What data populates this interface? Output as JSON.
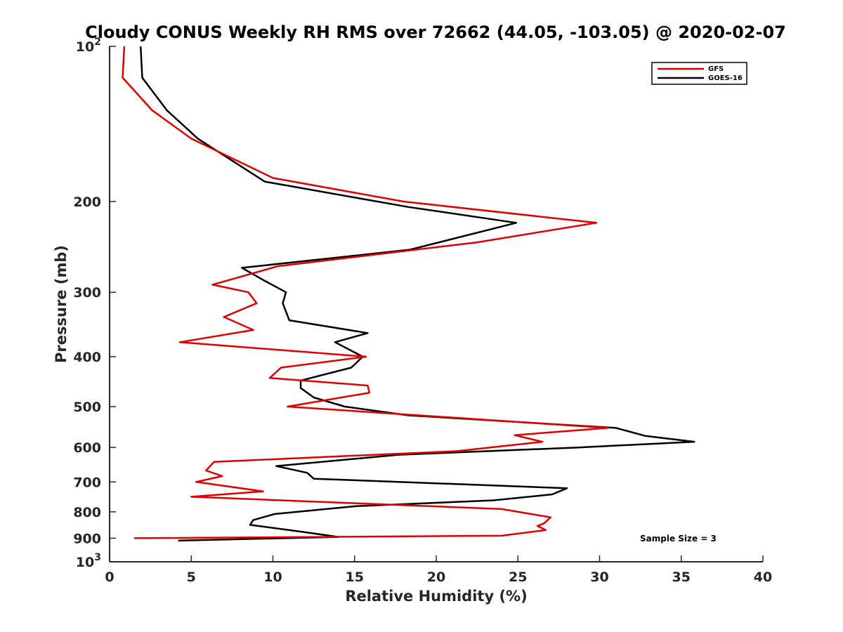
{
  "chart_data": {
    "type": "line",
    "title": "Cloudy CONUS Weekly RH RMS over 72662 (44.05, -103.05) @ 2020-02-07",
    "xlabel": "Relative Humidity (%)",
    "ylabel": "Pressure (mb)",
    "xlim": [
      0,
      40
    ],
    "ylim": [
      1000,
      100
    ],
    "y_scale": "log",
    "y_reversed": true,
    "x_ticks": [
      "0",
      "5",
      "10",
      "15",
      "20",
      "25",
      "30",
      "35",
      "40"
    ],
    "y_ticks": [
      {
        "value": 100,
        "base": "10",
        "exp": "2"
      },
      {
        "value": 200,
        "label": "200"
      },
      {
        "value": 300,
        "label": "300"
      },
      {
        "value": 400,
        "label": "400"
      },
      {
        "value": 500,
        "label": "500"
      },
      {
        "value": 600,
        "label": "600"
      },
      {
        "value": 700,
        "label": "700"
      },
      {
        "value": 800,
        "label": "800"
      },
      {
        "value": 900,
        "label": "900"
      },
      {
        "value": 1000,
        "base": "10",
        "exp": "3"
      }
    ],
    "legend_position": "top-right",
    "annotation": "Sample Size = 3",
    "series": [
      {
        "name": "GFS",
        "color": "#e00000",
        "points": [
          [
            0.9,
            100
          ],
          [
            0.8,
            115
          ],
          [
            2.6,
            133
          ],
          [
            5.0,
            151
          ],
          [
            10.0,
            180
          ],
          [
            18.0,
            200
          ],
          [
            29.8,
            220
          ],
          [
            22.5,
            240
          ],
          [
            10.3,
            267
          ],
          [
            6.3,
            290
          ],
          [
            8.5,
            300
          ],
          [
            9.0,
            315
          ],
          [
            7.0,
            335
          ],
          [
            8.8,
            355
          ],
          [
            4.3,
            375
          ],
          [
            15.7,
            400
          ],
          [
            10.5,
            420
          ],
          [
            9.8,
            440
          ],
          [
            15.8,
            455
          ],
          [
            15.9,
            470
          ],
          [
            10.9,
            500
          ],
          [
            30.5,
            550
          ],
          [
            24.8,
            568
          ],
          [
            26.5,
            585
          ],
          [
            21.3,
            610
          ],
          [
            6.4,
            640
          ],
          [
            5.9,
            665
          ],
          [
            6.9,
            682
          ],
          [
            5.3,
            700
          ],
          [
            9.4,
            730
          ],
          [
            5.0,
            748
          ],
          [
            24.0,
            790
          ],
          [
            27.0,
            820
          ],
          [
            26.6,
            842
          ],
          [
            26.2,
            852
          ],
          [
            26.7,
            868
          ],
          [
            24.0,
            890
          ],
          [
            1.5,
            900
          ]
        ]
      },
      {
        "name": "GOES-16",
        "color": "#000000",
        "points": [
          [
            1.9,
            100
          ],
          [
            2.0,
            115
          ],
          [
            3.5,
            133
          ],
          [
            5.4,
            151
          ],
          [
            9.5,
            183
          ],
          [
            18.3,
            205
          ],
          [
            24.9,
            220
          ],
          [
            18.4,
            248
          ],
          [
            8.1,
            269
          ],
          [
            9.5,
            285
          ],
          [
            10.8,
            300
          ],
          [
            10.6,
            315
          ],
          [
            11.0,
            340
          ],
          [
            15.8,
            360
          ],
          [
            13.8,
            375
          ],
          [
            15.5,
            400
          ],
          [
            14.8,
            420
          ],
          [
            11.7,
            445
          ],
          [
            11.7,
            460
          ],
          [
            12.5,
            480
          ],
          [
            14.4,
            500
          ],
          [
            18.3,
            520
          ],
          [
            31.0,
            550
          ],
          [
            32.8,
            570
          ],
          [
            35.8,
            585
          ],
          [
            28.7,
            600
          ],
          [
            17.7,
            620
          ],
          [
            10.2,
            652
          ],
          [
            12.1,
            672
          ],
          [
            12.5,
            690
          ],
          [
            28.0,
            720
          ],
          [
            27.1,
            740
          ],
          [
            23.5,
            760
          ],
          [
            15.1,
            780
          ],
          [
            10.1,
            808
          ],
          [
            8.8,
            830
          ],
          [
            8.6,
            848
          ],
          [
            11.8,
            875
          ],
          [
            14.0,
            895
          ],
          [
            4.2,
            910
          ]
        ]
      }
    ]
  }
}
